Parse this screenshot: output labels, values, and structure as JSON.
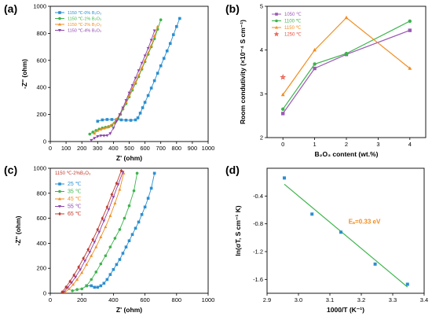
{
  "chart_data": [
    {
      "panel_label": "(a)",
      "type": "scatter",
      "xlabel": "Z' (ohm)",
      "ylabel": "-Z'' (ohm)",
      "xlim": [
        0,
        1000
      ],
      "ylim": [
        0,
        1000
      ],
      "xticks": [
        0,
        100,
        200,
        300,
        400,
        500,
        600,
        700,
        800,
        900,
        1000
      ],
      "yticks": [
        0,
        200,
        400,
        600,
        800,
        1000
      ],
      "legend_position": "top-left",
      "series": [
        {
          "name": "1150 ℃-0% B₂O₃",
          "color": "#2b8fd1",
          "marker": "square",
          "x": [
            300,
            330,
            360,
            390,
            420,
            450,
            480,
            510,
            540,
            555,
            570,
            585,
            600,
            620,
            640,
            660,
            680,
            700,
            720,
            740,
            760,
            780,
            800,
            820
          ],
          "y": [
            150,
            160,
            163,
            163,
            162,
            160,
            158,
            157,
            160,
            175,
            210,
            250,
            290,
            340,
            395,
            450,
            505,
            560,
            615,
            670,
            725,
            790,
            850,
            910
          ]
        },
        {
          "name": "1150 ℃-1% B₂O₃",
          "color": "#3cb44b",
          "marker": "circle",
          "x": [
            250,
            270,
            290,
            310,
            330,
            350,
            370,
            390,
            410,
            430,
            445,
            460,
            480,
            500,
            520,
            540,
            560,
            580,
            600,
            620,
            640,
            660,
            680,
            700
          ],
          "y": [
            55,
            70,
            82,
            92,
            100,
            105,
            110,
            120,
            140,
            170,
            200,
            240,
            280,
            330,
            380,
            430,
            480,
            535,
            590,
            645,
            700,
            760,
            830,
            900
          ]
        },
        {
          "name": "1150 ℃-2% B₂O₃",
          "color": "#f28c1e",
          "marker": "triangle",
          "x": [
            280,
            300,
            320,
            340,
            360,
            380,
            400,
            420,
            440,
            460,
            480,
            500,
            520,
            540,
            560,
            580,
            600,
            620,
            640,
            660,
            680
          ],
          "y": [
            60,
            80,
            90,
            98,
            105,
            115,
            135,
            165,
            200,
            245,
            290,
            340,
            390,
            440,
            490,
            545,
            600,
            655,
            710,
            780,
            850
          ]
        },
        {
          "name": "1150 ℃-4% B₂O₃",
          "color": "#8e44ad",
          "marker": "triangle-down",
          "x": [
            260,
            280,
            300,
            320,
            340,
            360,
            380,
            400,
            420,
            440,
            460,
            480,
            500,
            520,
            540,
            560,
            580,
            600,
            620,
            640,
            660
          ],
          "y": [
            10,
            25,
            38,
            43,
            43,
            45,
            60,
            100,
            150,
            200,
            250,
            305,
            360,
            415,
            470,
            525,
            580,
            635,
            690,
            750,
            820
          ]
        }
      ]
    },
    {
      "panel_label": "(b)",
      "type": "line",
      "xlabel": "B₂O₃ content (wt.%)",
      "ylabel": "Room condutivity (×10⁻⁴ S cm⁻¹)",
      "xlim": [
        -0.5,
        4.5
      ],
      "ylim": [
        2,
        5
      ],
      "xticks": [
        0,
        1,
        2,
        3,
        4
      ],
      "yticks": [
        2,
        3,
        4,
        5
      ],
      "legend_position": "top-left",
      "x": [
        0,
        1,
        2,
        4
      ],
      "series": [
        {
          "name": "1050 ℃",
          "color": "#9b59b6",
          "marker": "square",
          "values": [
            2.55,
            3.58,
            3.9,
            4.45
          ]
        },
        {
          "name": "1100 ℃",
          "color": "#3cb44b",
          "marker": "circle",
          "values": [
            2.65,
            3.68,
            3.92,
            4.66
          ]
        },
        {
          "name": "1150 ℃",
          "color": "#f28c1e",
          "marker": "triangle",
          "values": [
            2.98,
            4.0,
            4.74,
            3.58
          ]
        },
        {
          "name": "1250 ℃",
          "color": "#e74c3c",
          "marker": "star-open",
          "x": [
            0
          ],
          "values": [
            3.38
          ]
        }
      ]
    },
    {
      "panel_label": "(c)",
      "type": "line",
      "title_inside": "1150 ℃-2%B₂O₃",
      "xlabel": "Z' (ohm)",
      "ylabel": "-Z'' (ohm)",
      "xlim": [
        0,
        1000
      ],
      "ylim": [
        0,
        1000
      ],
      "xticks": [
        0,
        200,
        400,
        600,
        800,
        1000
      ],
      "yticks": [
        0,
        200,
        400,
        600,
        800,
        1000
      ],
      "legend_position": "top-left",
      "series": [
        {
          "name": "25 ℃",
          "color": "#2b8fd1",
          "marker": "square",
          "x": [
            230,
            260,
            280,
            300,
            320,
            340,
            360,
            380,
            400,
            420,
            440,
            460,
            480,
            500,
            520,
            540,
            560,
            580,
            600,
            620,
            640,
            660
          ],
          "y": [
            60,
            60,
            48,
            48,
            60,
            80,
            110,
            150,
            190,
            230,
            270,
            320,
            370,
            420,
            470,
            520,
            570,
            630,
            690,
            760,
            840,
            960
          ]
        },
        {
          "name": "35 ℃",
          "color": "#3cb44b",
          "marker": "circle",
          "x": [
            140,
            170,
            200,
            230,
            260,
            290,
            320,
            350,
            380,
            410,
            440,
            470,
            500,
            530,
            550
          ],
          "y": [
            20,
            30,
            35,
            60,
            110,
            170,
            235,
            300,
            370,
            440,
            510,
            600,
            700,
            820,
            960
          ]
        },
        {
          "name": "45 ℃",
          "color": "#f28c1e",
          "marker": "triangle",
          "x": [
            95,
            120,
            145,
            170,
            200,
            230,
            260,
            290,
            320,
            350,
            380,
            410,
            440,
            465
          ],
          "y": [
            10,
            35,
            70,
            110,
            165,
            230,
            300,
            370,
            450,
            530,
            620,
            720,
            830,
            960
          ]
        },
        {
          "name": "55 ℃",
          "color": "#8e44ad",
          "marker": "triangle-down",
          "x": [
            85,
            110,
            135,
            160,
            190,
            220,
            250,
            280,
            310,
            340,
            370,
            400,
            430,
            460
          ],
          "y": [
            10,
            45,
            85,
            130,
            190,
            260,
            330,
            410,
            490,
            580,
            670,
            770,
            870,
            970
          ]
        },
        {
          "name": "65 ℃",
          "color": "#c0392b",
          "marker": "diamond",
          "x": [
            75,
            100,
            125,
            150,
            180,
            210,
            240,
            270,
            300,
            330,
            360,
            390,
            420,
            450
          ],
          "y": [
            10,
            50,
            95,
            145,
            210,
            280,
            350,
            430,
            510,
            600,
            690,
            790,
            880,
            980
          ]
        }
      ]
    },
    {
      "panel_label": "(d)",
      "type": "scatter",
      "xlabel": "1000/T (K⁻¹)",
      "ylabel": "ln(σT, S cm⁻¹ K)",
      "xlim": [
        2.9,
        3.4
      ],
      "ylim": [
        -1.8,
        0
      ],
      "xticks": [
        2.9,
        3.0,
        3.1,
        3.2,
        3.3,
        3.4
      ],
      "yticks": [
        -0.4,
        -0.8,
        -1.2,
        -1.6
      ],
      "annotation": "Eₐ=0.33 eV",
      "points": {
        "color": "#2b8fd1",
        "marker": "square",
        "x": [
          2.955,
          3.043,
          3.135,
          3.244,
          3.347
        ],
        "y": [
          -0.14,
          -0.66,
          -0.92,
          -1.38,
          -1.67
        ]
      },
      "fit": {
        "color": "#3cb44b",
        "x": [
          2.955,
          3.347
        ],
        "y": [
          -0.23,
          -1.71
        ]
      }
    }
  ]
}
